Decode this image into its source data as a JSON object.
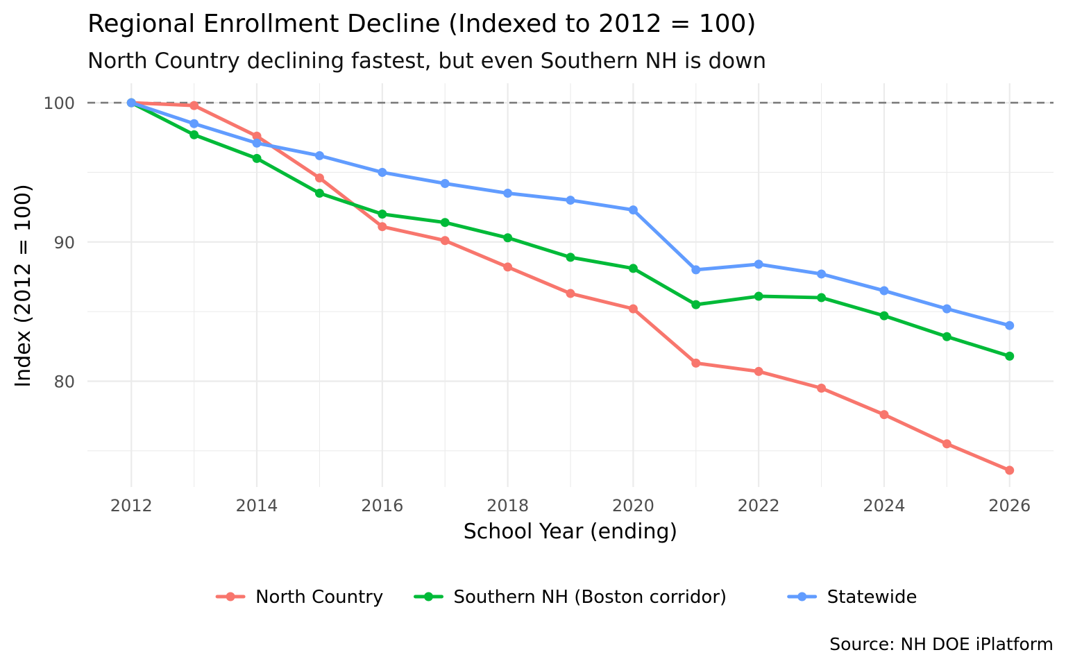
{
  "chart_data": {
    "type": "line",
    "title": "Regional Enrollment Decline (Indexed to 2012 = 100)",
    "subtitle": "North Country declining fastest, but even Southern NH is down",
    "xlabel": "School Year (ending)",
    "ylabel": "Index (2012 = 100)",
    "caption": "Source: NH DOE iPlatform",
    "x": [
      2012,
      2013,
      2014,
      2015,
      2016,
      2017,
      2018,
      2019,
      2020,
      2021,
      2022,
      2023,
      2024,
      2025,
      2026
    ],
    "x_ticks": [
      2012,
      2014,
      2016,
      2018,
      2020,
      2022,
      2024,
      2026
    ],
    "y_ticks": [
      80,
      90,
      100
    ],
    "xlim": [
      2011.3,
      2026.7
    ],
    "ylim": [
      72.4,
      101.4
    ],
    "reference_line": {
      "value": 100,
      "style": "dashed"
    },
    "grid": true,
    "legend_position": "bottom",
    "series": [
      {
        "name": "North Country",
        "color": "#F8766D",
        "values": [
          100,
          99.8,
          97.6,
          94.6,
          91.1,
          90.1,
          88.2,
          86.3,
          85.2,
          81.3,
          80.7,
          79.5,
          77.6,
          75.5,
          73.6
        ]
      },
      {
        "name": "Southern NH (Boston corridor)",
        "color": "#00BA38",
        "values": [
          100,
          97.7,
          96.0,
          93.5,
          92.0,
          91.4,
          90.3,
          88.9,
          88.1,
          85.5,
          86.1,
          86.0,
          84.7,
          83.2,
          81.8
        ]
      },
      {
        "name": "Statewide",
        "color": "#619CFF",
        "values": [
          100,
          98.5,
          97.1,
          96.2,
          95.0,
          94.2,
          93.5,
          93.0,
          92.3,
          88.0,
          88.4,
          87.7,
          86.5,
          85.2,
          84.0
        ]
      }
    ]
  }
}
